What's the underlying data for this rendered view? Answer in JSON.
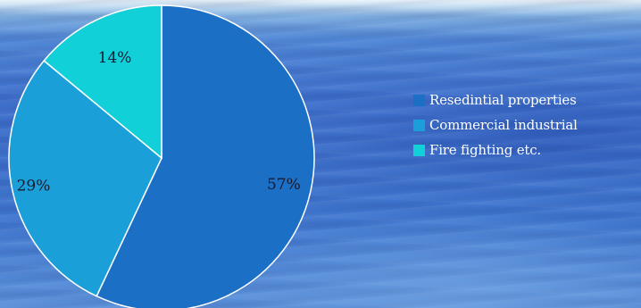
{
  "chart_data": {
    "type": "pie",
    "categories": [
      "Resedintial properties",
      "Commercial industrial",
      "Fire fighting etc."
    ],
    "values": [
      57,
      29,
      14
    ],
    "labels": [
      "57%",
      "29%",
      "14%"
    ],
    "colors": [
      "#1b6fc4",
      "#1a9fd9",
      "#12d0d8"
    ],
    "start": "12 o'clock",
    "direction": "clockwise",
    "legend_placement": "right"
  }
}
